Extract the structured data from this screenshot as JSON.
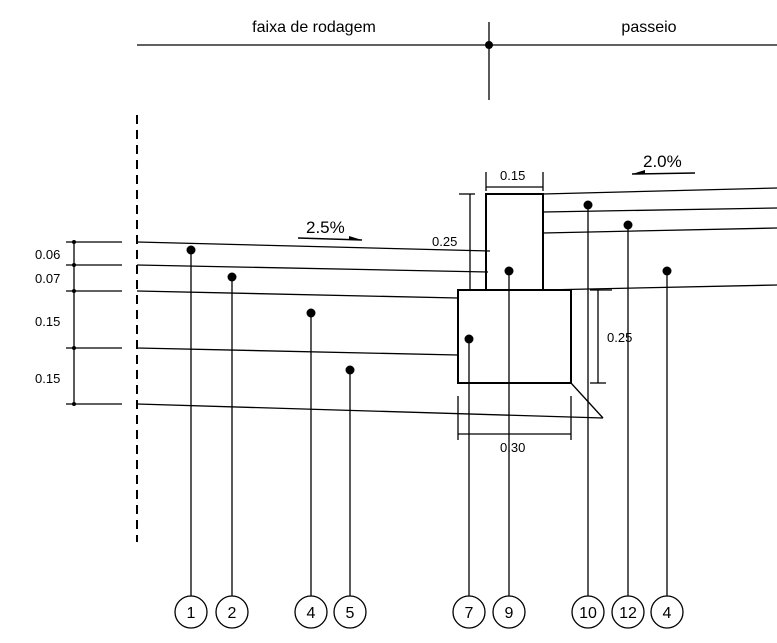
{
  "header": {
    "left_label": "faixa de rodagem",
    "right_label": "passeio"
  },
  "slopes": {
    "road": "2.5%",
    "sidewalk": "2.0%"
  },
  "left_dimensions": {
    "layer1": "0.06",
    "layer2": "0.07",
    "layer3": "0.15",
    "layer4": "0.15"
  },
  "curb_dimensions": {
    "top_width": "0.15",
    "curb_height": "0.25",
    "base_height": "0.25",
    "base_width": "0.30"
  },
  "callouts": [
    "1",
    "2",
    "4",
    "5",
    "7",
    "9",
    "10",
    "12",
    "4"
  ]
}
